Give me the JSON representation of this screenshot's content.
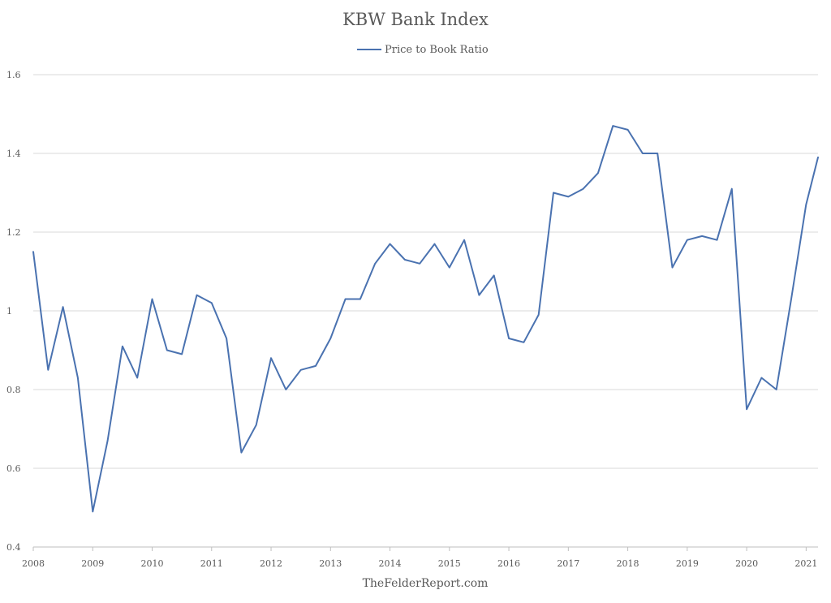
{
  "chart_data": {
    "type": "line",
    "title": "KBW Bank Index",
    "xlabel": "",
    "ylabel": "",
    "ylim": [
      0.4,
      1.6
    ],
    "yticks": [
      0.4,
      0.6,
      0.8,
      1,
      1.2,
      1.4,
      1.6
    ],
    "xticks": [
      "2008",
      "2009",
      "2010",
      "2011",
      "2012",
      "2013",
      "2014",
      "2015",
      "2016",
      "2017",
      "2018",
      "2019",
      "2020",
      "2021"
    ],
    "xlim": [
      2008.0,
      2021.2
    ],
    "grid": true,
    "legend_position": "top-center",
    "series": [
      {
        "name": "Price to Book Ratio",
        "color": "#4a72b0",
        "x": [
          2008.0,
          2008.25,
          2008.5,
          2008.75,
          2009.0,
          2009.25,
          2009.5,
          2009.75,
          2010.0,
          2010.25,
          2010.5,
          2010.75,
          2011.0,
          2011.25,
          2011.5,
          2011.75,
          2012.0,
          2012.25,
          2012.5,
          2012.75,
          2013.0,
          2013.25,
          2013.5,
          2013.75,
          2014.0,
          2014.25,
          2014.5,
          2014.75,
          2015.0,
          2015.25,
          2015.5,
          2015.75,
          2016.0,
          2016.25,
          2016.5,
          2016.75,
          2017.0,
          2017.25,
          2017.5,
          2017.75,
          2018.0,
          2018.25,
          2018.5,
          2018.75,
          2019.0,
          2019.25,
          2019.5,
          2019.75,
          2020.0,
          2020.25,
          2020.5,
          2020.75,
          2021.0,
          2021.2
        ],
        "values": [
          1.15,
          0.85,
          1.01,
          0.83,
          0.49,
          0.67,
          0.91,
          0.83,
          1.03,
          0.9,
          0.89,
          1.04,
          1.02,
          0.93,
          0.64,
          0.71,
          0.88,
          0.8,
          0.85,
          0.86,
          0.93,
          1.03,
          1.03,
          1.12,
          1.17,
          1.13,
          1.12,
          1.17,
          1.11,
          1.18,
          1.04,
          1.09,
          0.93,
          0.92,
          0.99,
          1.3,
          1.29,
          1.31,
          1.35,
          1.47,
          1.46,
          1.4,
          1.4,
          1.11,
          1.18,
          1.19,
          1.18,
          1.31,
          0.75,
          0.83,
          0.8,
          1.03,
          1.27,
          1.39
        ]
      }
    ]
  },
  "footer": "TheFelderReport.com"
}
